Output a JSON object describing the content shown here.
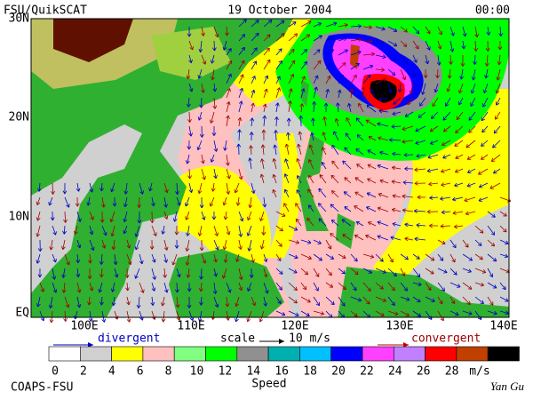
{
  "header": {
    "left": "FSU/QuikSCAT",
    "date": "19 October 2004",
    "time": "00:00"
  },
  "map": {
    "lat_labels": [
      "30N",
      "20N",
      "10N",
      "EQ"
    ],
    "lon_labels": [
      "100E",
      "110E",
      "120E",
      "130E",
      "140E"
    ]
  },
  "legend": {
    "divergent": "divergent",
    "scale": "scale",
    "scale_value": "10 m/s",
    "convergent": "convergent"
  },
  "colorbar": {
    "labels": [
      0,
      2,
      4,
      6,
      8,
      10,
      12,
      14,
      16,
      18,
      20,
      22,
      24,
      26,
      28
    ],
    "unit": "m/s",
    "title": "Speed",
    "colors": [
      "#ffffff",
      "#d0d0d0",
      "#ffff00",
      "#ffc0c0",
      "#80ff80",
      "#00ff00",
      "#909090",
      "#00b0b0",
      "#00c0ff",
      "#0000ff",
      "#ff40ff",
      "#c080ff",
      "#ff0000",
      "#c04000",
      "#000000"
    ]
  },
  "footer": {
    "left": "COAPS-FSU",
    "right": "Yan Gu"
  }
}
